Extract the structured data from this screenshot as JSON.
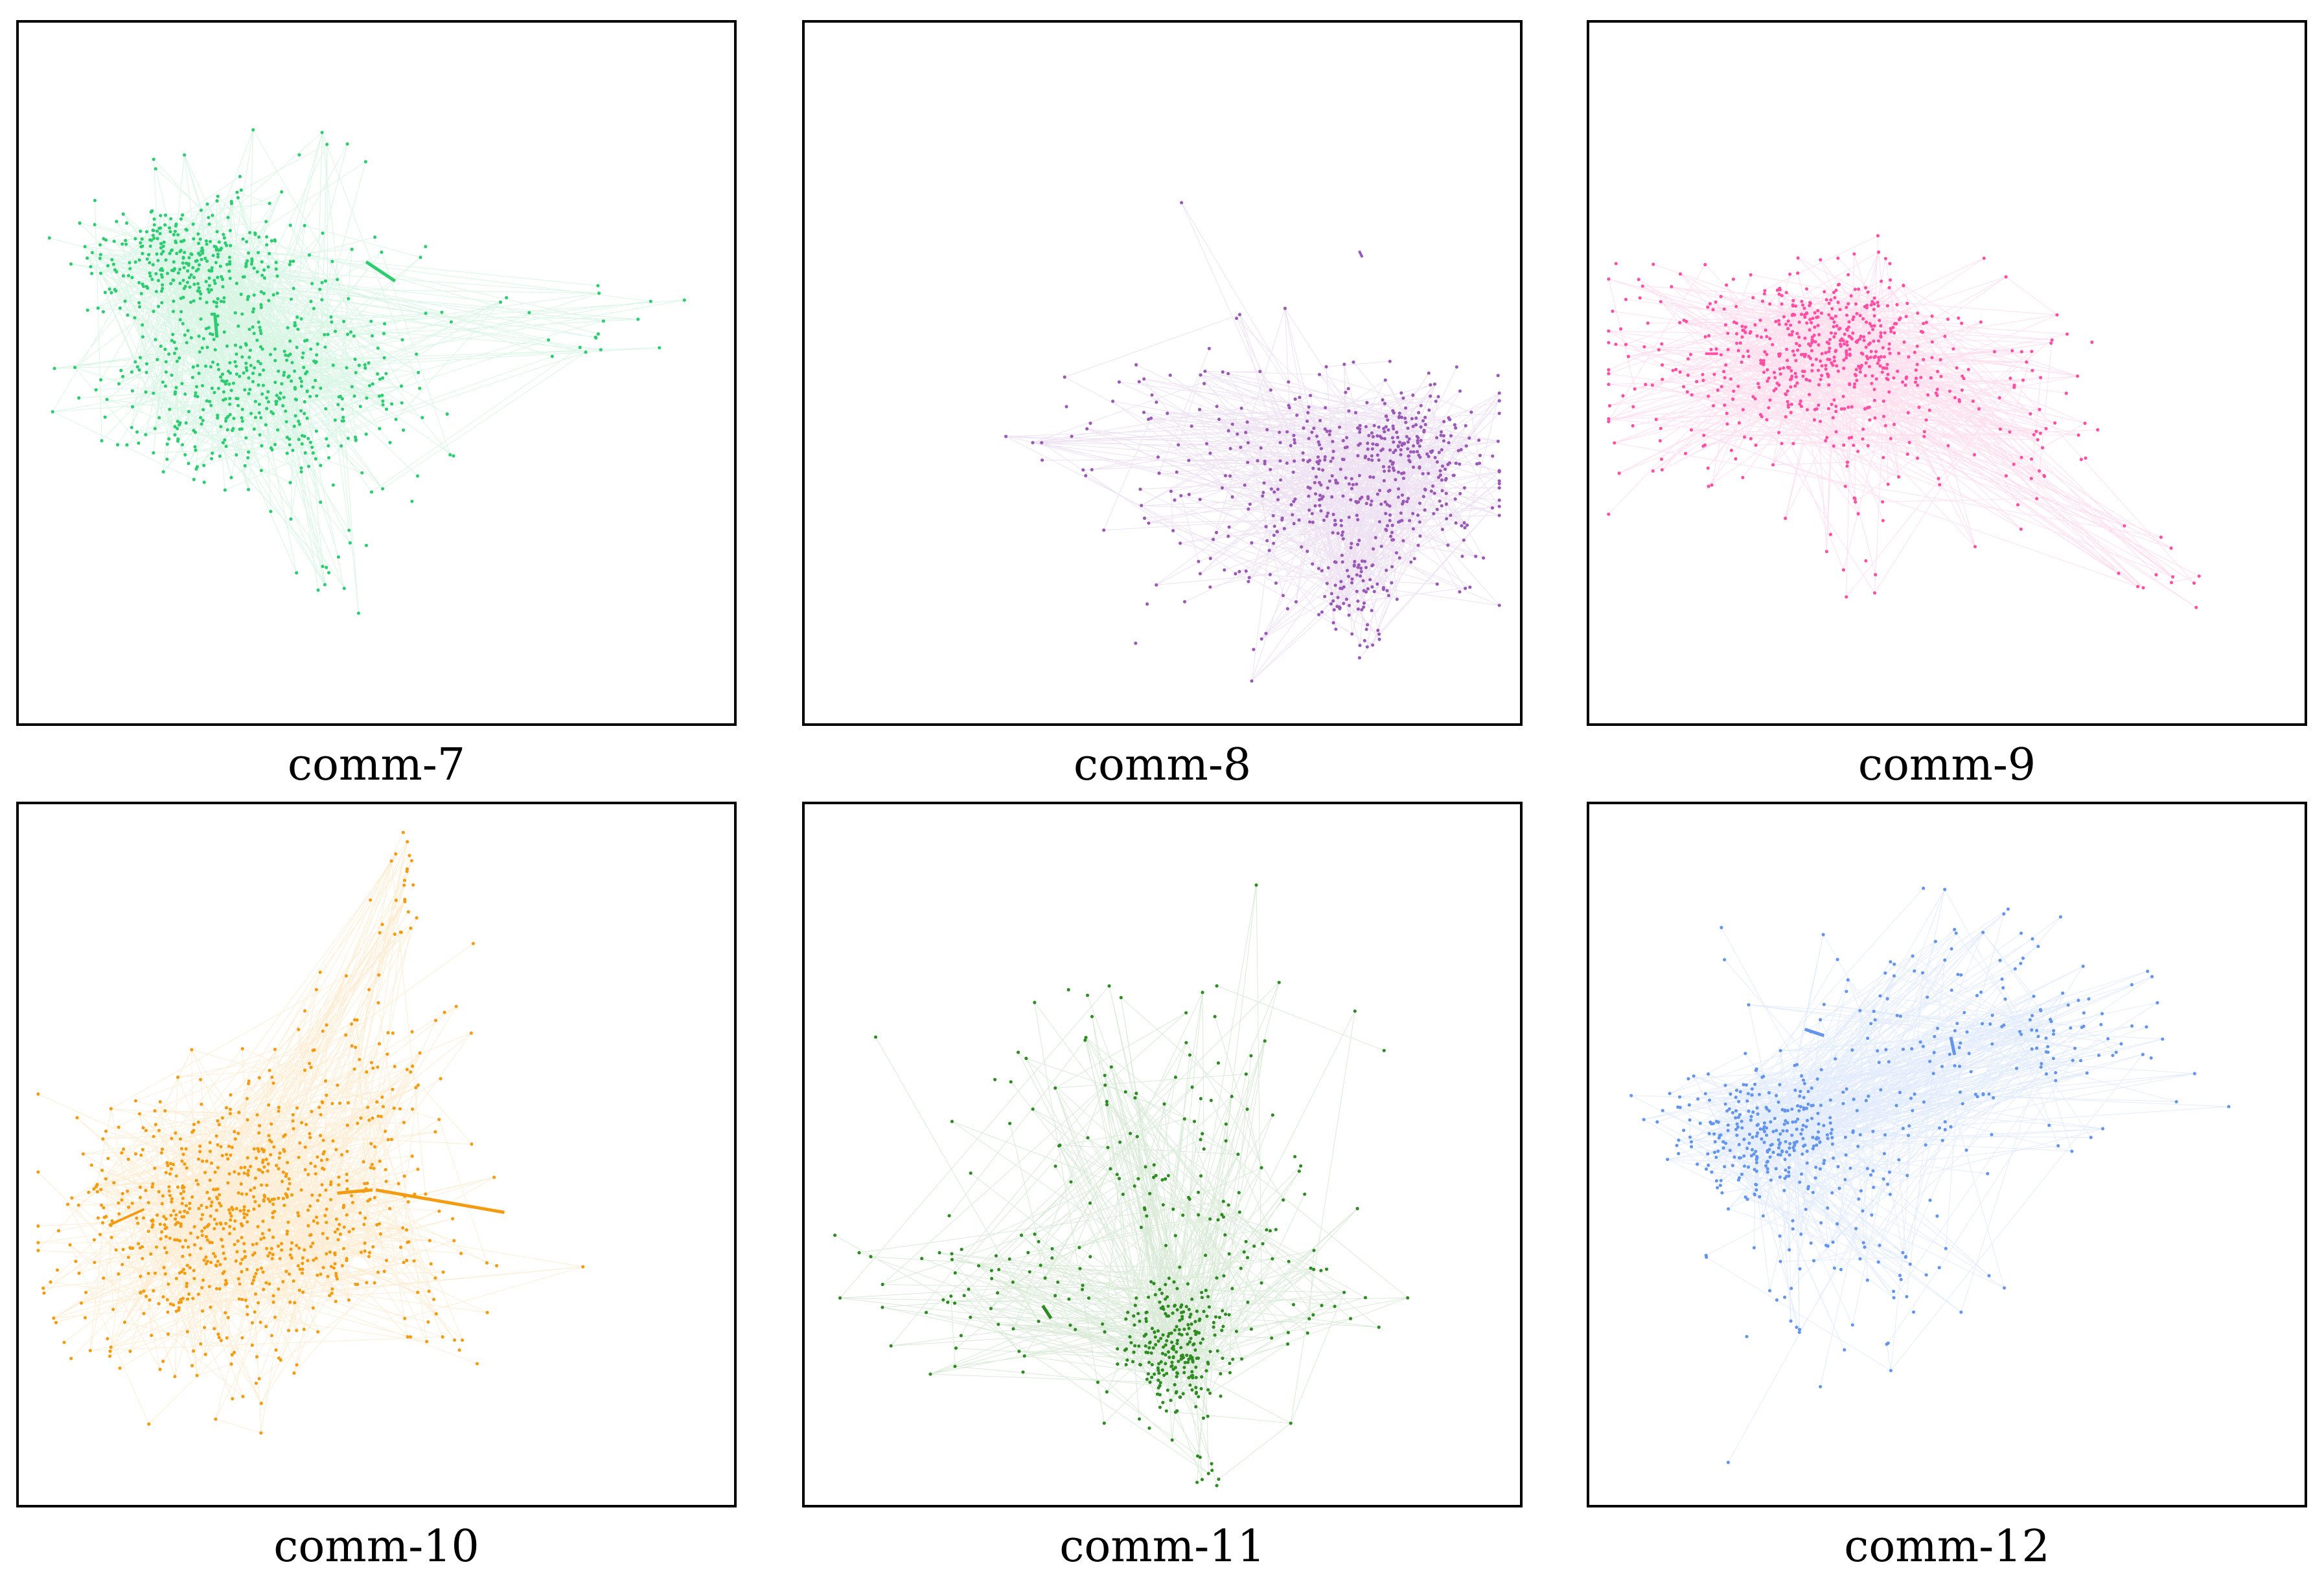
{
  "panels": [
    {
      "caption": "comm-7",
      "color": "#2ecc71"
    },
    {
      "caption": "comm-8",
      "color": "#9b59b6"
    },
    {
      "caption": "comm-9",
      "color": "#ff4fa3"
    },
    {
      "caption": "comm-10",
      "color": "#f39c12"
    },
    {
      "caption": "comm-11",
      "color": "#2e8b22"
    },
    {
      "caption": "comm-12",
      "color": "#6495ed"
    }
  ]
}
